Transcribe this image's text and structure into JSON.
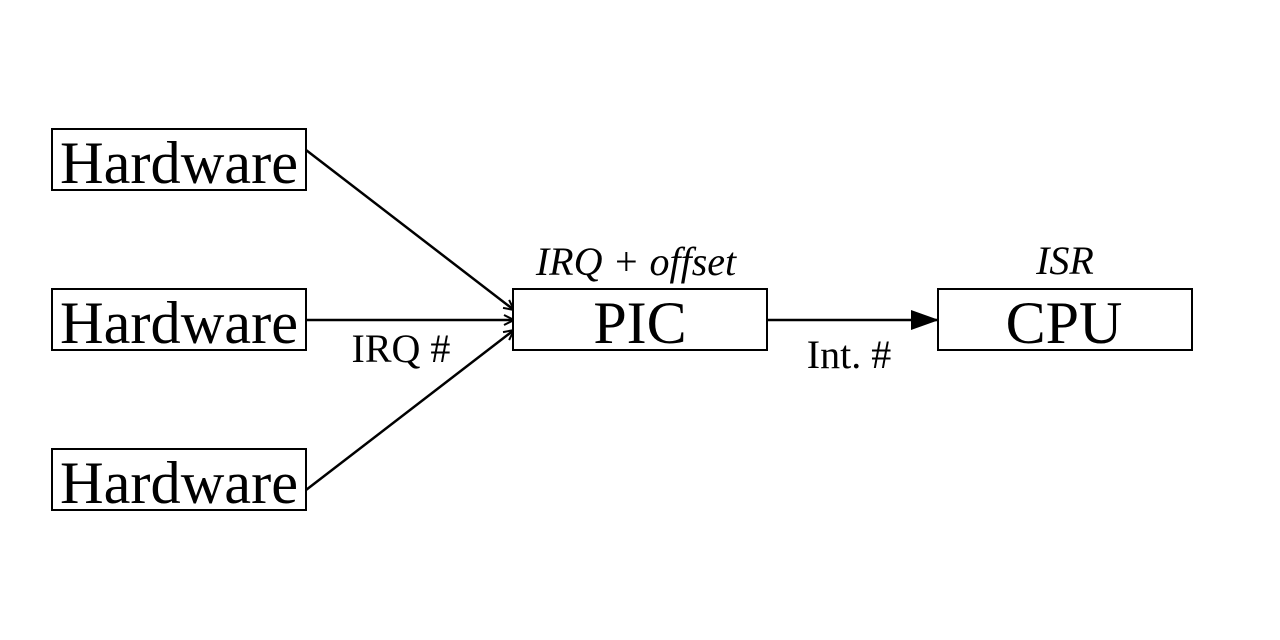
{
  "diagram": {
    "nodes": {
      "hardware_1": "Hardware",
      "hardware_2": "Hardware",
      "hardware_3": "Hardware",
      "pic": "PIC",
      "cpu": "CPU"
    },
    "annotations": {
      "pic_note": "IRQ + offset",
      "cpu_note": "ISR"
    },
    "edge_labels": {
      "irq": "IRQ #",
      "int": "Int. #"
    },
    "edges": [
      {
        "from": "hardware_1",
        "to": "pic"
      },
      {
        "from": "hardware_2",
        "to": "pic",
        "label": "IRQ #"
      },
      {
        "from": "hardware_3",
        "to": "pic"
      },
      {
        "from": "pic",
        "to": "cpu",
        "label": "Int. #"
      }
    ],
    "colors": {
      "stroke": "#000000",
      "background": "#ffffff"
    }
  }
}
